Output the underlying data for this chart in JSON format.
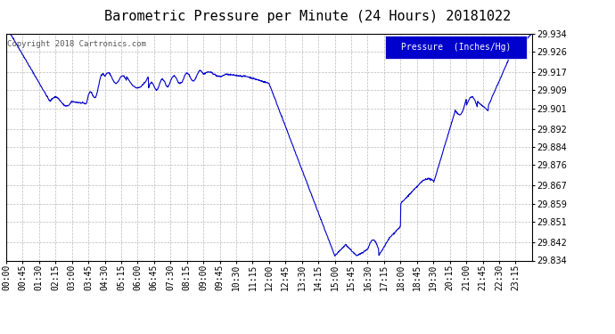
{
  "title": "Barometric Pressure per Minute (24 Hours) 20181022",
  "copyright": "Copyright 2018 Cartronics.com",
  "legend_label": "Pressure  (Inches/Hg)",
  "line_color": "#0000CC",
  "background_color": "#ffffff",
  "plot_bg_color": "#ffffff",
  "grid_color": "#aaaaaa",
  "legend_bg_color": "#0000CC",
  "legend_text_color": "#ffffff",
  "ylim_min": 29.834,
  "ylim_max": 29.934,
  "ytick_values": [
    29.834,
    29.842,
    29.851,
    29.859,
    29.867,
    29.876,
    29.884,
    29.892,
    29.901,
    29.909,
    29.917,
    29.926,
    29.934
  ],
  "xtick_labels": [
    "00:00",
    "00:45",
    "01:30",
    "02:15",
    "03:00",
    "03:45",
    "04:30",
    "05:15",
    "06:00",
    "06:45",
    "07:30",
    "08:15",
    "09:00",
    "09:45",
    "10:30",
    "11:15",
    "12:00",
    "12:45",
    "13:30",
    "14:15",
    "15:00",
    "15:45",
    "16:30",
    "17:15",
    "18:00",
    "18:45",
    "19:30",
    "20:15",
    "21:00",
    "21:45",
    "22:30",
    "23:15"
  ],
  "title_fontsize": 11,
  "tick_fontsize": 7,
  "copyright_fontsize": 6.5,
  "legend_fontsize": 7
}
